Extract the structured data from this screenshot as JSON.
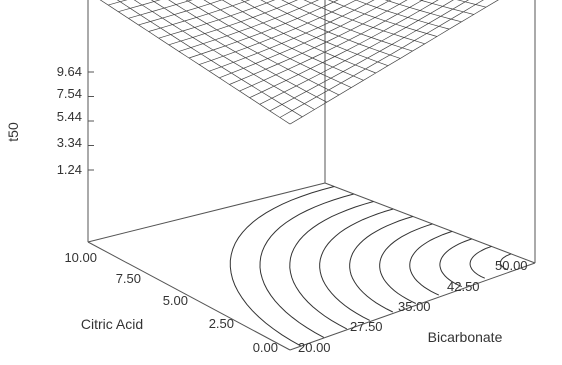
{
  "chart_data": {
    "type": "surface",
    "xlabel": "Bicarbonate",
    "ylabel": "Citric Acid",
    "zlabel": "t50",
    "x_ticks": [
      "20.00",
      "27.50",
      "35.00",
      "42.50",
      "50.00"
    ],
    "y_ticks": [
      "0.00",
      "2.50",
      "5.00",
      "7.50",
      "10.00"
    ],
    "z_ticks": [
      "1.24",
      "3.34",
      "5.44",
      "7.54",
      "9.64"
    ],
    "xlim": [
      20,
      50
    ],
    "ylim": [
      0,
      10
    ],
    "zlim": [
      1.24,
      9.64
    ],
    "grid_lines": 20,
    "contour_levels": 10,
    "surface_color": "#444444",
    "axis_color": "#555555",
    "corner_values": [
      {
        "x": 20,
        "y": 0,
        "z": 5.5
      },
      {
        "x": 50,
        "y": 0,
        "z": 9.64
      },
      {
        "x": 20,
        "y": 10,
        "z": 7.2
      },
      {
        "x": 50,
        "y": 10,
        "z": 7.8
      }
    ]
  }
}
